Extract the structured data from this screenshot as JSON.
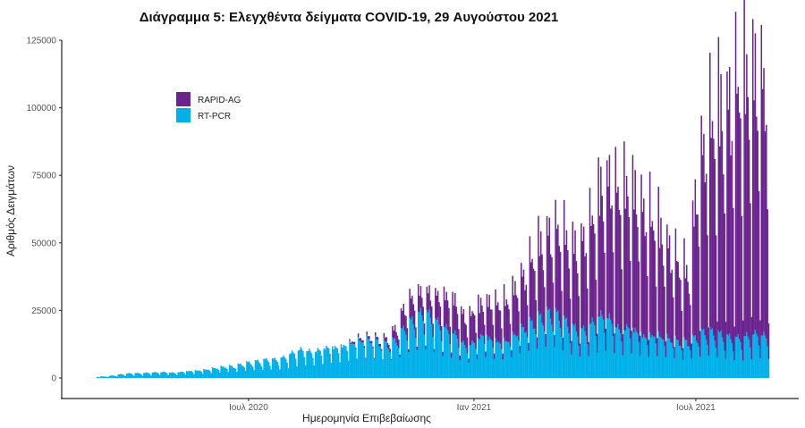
{
  "chart_data": {
    "type": "bar",
    "stacked": true,
    "title": "Διάγραμμα 5: Ελεγχθέντα δείγματα COVID-19, 29 Αυγούστου 2021",
    "xlabel": "Ημερομηνία Επιβεβαίωσης",
    "ylabel": "Αριθμός Δειγμάτων",
    "ylim": [
      0,
      125000
    ],
    "yticks": [
      0,
      25000,
      50000,
      75000,
      100000,
      125000
    ],
    "ytick_labels": [
      "0",
      "25000",
      "50000",
      "75000",
      "100000",
      "125000"
    ],
    "xticks": [
      {
        "date": "2020-07-01",
        "label": "Ιουλ 2020"
      },
      {
        "date": "2021-01-01",
        "label": "Ιαν 2021"
      },
      {
        "date": "2021-07-01",
        "label": "Ιουλ 2021"
      }
    ],
    "x_start": "2020-02-28",
    "x_end": "2021-08-29",
    "grid": false,
    "legend_position": "top-left",
    "note": "weekly typical weekday values (thousands of samples), one value per week starting at x_start",
    "series": [
      {
        "name": "RAPID-AG",
        "color": "#6B2390",
        "weekly_values_thousands": [
          0,
          0,
          0,
          0,
          0,
          0,
          0,
          0,
          0,
          0,
          0,
          0,
          0,
          0,
          0,
          0,
          0,
          0,
          0,
          0,
          0,
          0,
          0,
          0,
          0,
          0,
          0,
          0,
          0,
          0,
          1,
          1,
          1,
          1,
          2,
          5,
          8,
          8,
          7,
          8,
          10,
          12,
          12,
          10,
          12,
          12,
          14,
          14,
          15,
          18,
          20,
          25,
          28,
          30,
          32,
          30,
          30,
          35,
          40,
          50,
          52,
          50,
          52,
          50,
          45,
          42,
          38,
          32,
          28,
          25,
          60,
          70,
          80,
          85,
          88,
          95,
          95,
          95,
          90
        ]
      },
      {
        "name": "RT-PCR",
        "color": "#00B0E8",
        "weekly_values_thousands": [
          0.5,
          0.6,
          1.0,
          1.5,
          1.8,
          1.8,
          2.0,
          2.2,
          2.3,
          2.0,
          2.5,
          2.8,
          3.0,
          3.5,
          4.0,
          4.5,
          4.5,
          5.5,
          6,
          6.5,
          7,
          7,
          8,
          10,
          11,
          10,
          11,
          12,
          12,
          13,
          14,
          15,
          15,
          14,
          13,
          15,
          20,
          22,
          25,
          23,
          20,
          18,
          16,
          12,
          14,
          17,
          15,
          14,
          15,
          18,
          20,
          22,
          24,
          25,
          23,
          20,
          18,
          18,
          22,
          24,
          22,
          18,
          20,
          18,
          16,
          17,
          16,
          15,
          14,
          14,
          16,
          18,
          17,
          16,
          15,
          15,
          16,
          17,
          16
        ]
      }
    ]
  }
}
